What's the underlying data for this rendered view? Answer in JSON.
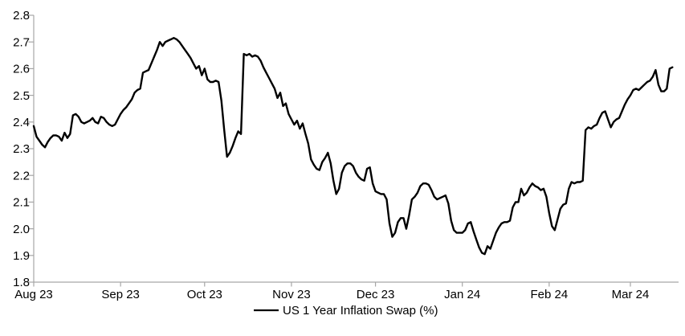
{
  "chart_data": {
    "type": "line",
    "title": "",
    "series_name": "US 1 Year Inflation Swap (%)",
    "line_color": "#000000",
    "axis_color": "#a6a6a6",
    "background_color": "#ffffff",
    "grid": false,
    "legend_position": "bottom-center",
    "ylim": [
      1.8,
      2.8
    ],
    "y_tick_step": 0.1,
    "y_tick_labels": [
      "2.8",
      "2.7",
      "2.6",
      "2.5",
      "2.4",
      "2.3",
      "2.2",
      "2.1",
      "2.0",
      "1.9",
      "1.8"
    ],
    "x_tick_labels": [
      "Aug 23",
      "Sep 23",
      "Oct 23",
      "Nov 23",
      "Dec 23",
      "Jan 24",
      "Feb 24",
      "Mar 24"
    ],
    "x_tick_day_offsets": [
      0,
      31,
      61,
      92,
      122,
      153,
      184,
      213
    ],
    "x_unit": "calendar days since start_date (one value per day)",
    "start_date": "2023-08-01",
    "end_date": "2024-03-16",
    "timeline_days_per_month_span": 213,
    "values": [
      2.385,
      2.345,
      2.33,
      2.315,
      2.305,
      2.325,
      2.34,
      2.35,
      2.35,
      2.345,
      2.33,
      2.36,
      2.34,
      2.355,
      2.425,
      2.43,
      2.42,
      2.4,
      2.395,
      2.4,
      2.405,
      2.415,
      2.4,
      2.395,
      2.42,
      2.415,
      2.4,
      2.39,
      2.385,
      2.39,
      2.41,
      2.43,
      2.445,
      2.455,
      2.47,
      2.485,
      2.51,
      2.52,
      2.525,
      2.585,
      2.59,
      2.595,
      2.62,
      2.645,
      2.67,
      2.7,
      2.685,
      2.7,
      2.705,
      2.71,
      2.715,
      2.71,
      2.7,
      2.685,
      2.67,
      2.655,
      2.64,
      2.62,
      2.6,
      2.61,
      2.575,
      2.6,
      2.56,
      2.55,
      2.55,
      2.555,
      2.55,
      2.48,
      2.37,
      2.27,
      2.285,
      2.31,
      2.34,
      2.365,
      2.355,
      2.655,
      2.65,
      2.655,
      2.645,
      2.65,
      2.645,
      2.63,
      2.605,
      2.585,
      2.565,
      2.545,
      2.525,
      2.49,
      2.51,
      2.46,
      2.47,
      2.43,
      2.41,
      2.39,
      2.405,
      2.375,
      2.395,
      2.355,
      2.32,
      2.26,
      2.24,
      2.225,
      2.22,
      2.25,
      2.265,
      2.285,
      2.245,
      2.18,
      2.13,
      2.15,
      2.21,
      2.235,
      2.245,
      2.245,
      2.235,
      2.21,
      2.195,
      2.185,
      2.18,
      2.225,
      2.23,
      2.17,
      2.14,
      2.135,
      2.13,
      2.13,
      2.11,
      2.02,
      1.97,
      1.985,
      2.025,
      2.04,
      2.04,
      2.0,
      2.05,
      2.11,
      2.12,
      2.135,
      2.16,
      2.17,
      2.17,
      2.165,
      2.145,
      2.12,
      2.11,
      2.115,
      2.12,
      2.125,
      2.095,
      2.03,
      1.995,
      1.985,
      1.985,
      1.985,
      1.995,
      2.02,
      2.025,
      1.99,
      1.96,
      1.93,
      1.91,
      1.905,
      1.935,
      1.925,
      1.955,
      1.985,
      2.005,
      2.02,
      2.025,
      2.025,
      2.03,
      2.08,
      2.1,
      2.1,
      2.15,
      2.125,
      2.135,
      2.155,
      2.17,
      2.16,
      2.155,
      2.145,
      2.15,
      2.12,
      2.06,
      2.01,
      1.995,
      2.035,
      2.075,
      2.09,
      2.095,
      2.15,
      2.175,
      2.17,
      2.175,
      2.175,
      2.18,
      2.37,
      2.38,
      2.375,
      2.385,
      2.39,
      2.415,
      2.435,
      2.44,
      2.41,
      2.38,
      2.4,
      2.41,
      2.415,
      2.44,
      2.465,
      2.485,
      2.5,
      2.52,
      2.525,
      2.52,
      2.53,
      2.54,
      2.55,
      2.555,
      2.57,
      2.595,
      2.54,
      2.515,
      2.515,
      2.525,
      2.6,
      2.605
    ]
  },
  "legend": {
    "label": "US 1 Year Inflation Swap (%)"
  }
}
